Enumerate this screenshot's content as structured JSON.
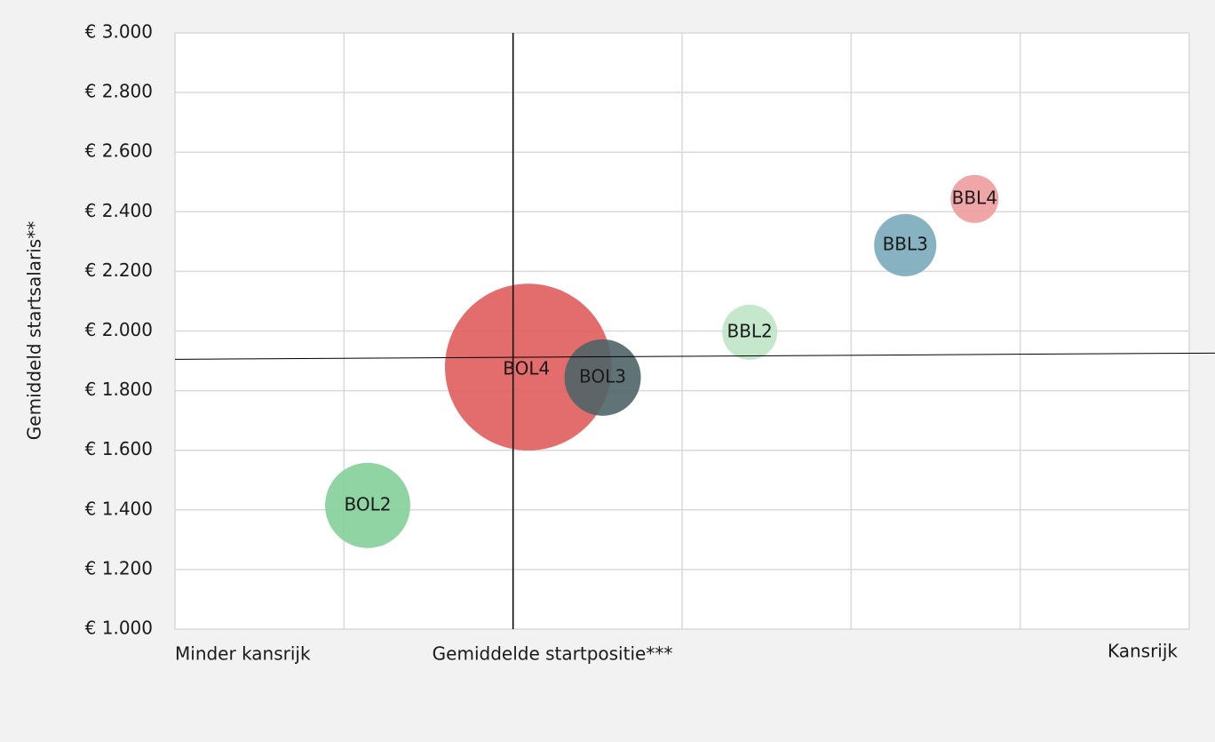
{
  "chart_data": {
    "type": "bubble",
    "y_label": "Gemiddeld startsalaris**",
    "x_annotations": [
      "Minder kansrijk",
      "Gemiddelde startpositie***",
      "Kansrijk"
    ],
    "labels": [
      "BOL4",
      "BOL3",
      "BOL2",
      "BBL2",
      "BBL3",
      "BBL4"
    ],
    "x": [
      2.09,
      2.53,
      1.14,
      3.4,
      4.32,
      4.73
    ],
    "values": [
      1879,
      1844,
      1415,
      1996,
      2288,
      2443
    ],
    "sizes": [
      88,
      18.5,
      23,
      9.6,
      12.3,
      7.3
    ],
    "colors": [
      "#e05c5c",
      "#4f6569",
      "#84cf9a",
      "#bfe4c6",
      "#7aaabb",
      "#ee9c9c"
    ],
    "xlim": [
      0,
      6
    ],
    "xticks": [
      0,
      1,
      2,
      3,
      4,
      5,
      6
    ],
    "ylim": [
      1000,
      3000
    ],
    "yticks": [
      {
        "value": 1000,
        "label": "€ 1.000"
      },
      {
        "value": 1200,
        "label": "€ 1.200"
      },
      {
        "value": 1400,
        "label": "€ 1.400"
      },
      {
        "value": 1600,
        "label": "€ 1.600"
      },
      {
        "value": 1800,
        "label": "€ 1.800"
      },
      {
        "value": 2000,
        "label": "€ 2.000"
      },
      {
        "value": 2200,
        "label": "€ 2.200"
      },
      {
        "value": 2400,
        "label": "€ 2.400"
      },
      {
        "value": 2600,
        "label": "€ 2.600"
      },
      {
        "value": 2800,
        "label": "€ 2.800"
      },
      {
        "value": 3000,
        "label": "€ 3.000"
      }
    ],
    "reference_lines": [
      {
        "x": 2
      },
      {
        "from": [
          0,
          1905
        ],
        "to": [
          6,
          1926
        ]
      }
    ],
    "grid": true
  }
}
